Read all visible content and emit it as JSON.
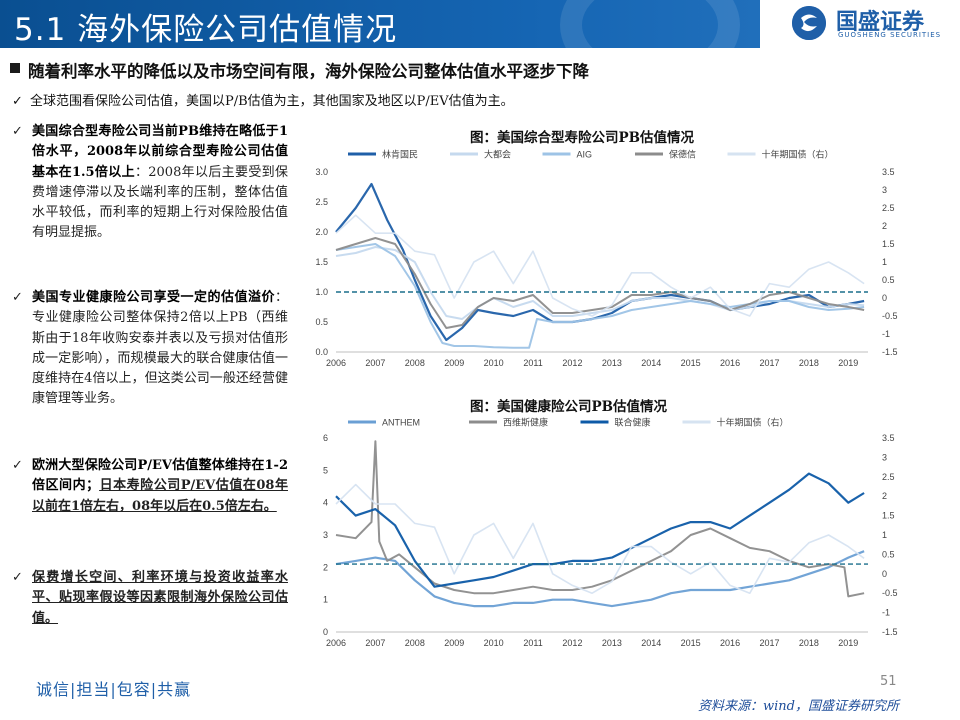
{
  "header": {
    "title": "5.1 海外保险公司估值情况",
    "logo_name": "国盛证券",
    "logo_sub": "GUOSHENG SECURITIES"
  },
  "headline": "随着利率水平的降低以及市场空间有限，海外保险公司整体估值水平逐步下降",
  "subline": "全球范围看保险公司估值，美国以P/B估值为主，其他国家及地区以P/EV估值为主。",
  "bullets": [
    {
      "bold": "美国综合型寿险公司当前PB维持在略低于1倍水平，2008年以前综合型寿险公司估值基本在1.5倍以上",
      "text": "：2008年以后主要受到保费增速停滞以及长端利率的压制，整体估值水平较低，而利率的短期上行对保险股估值有明显提振。"
    },
    {
      "bold": "美国专业健康险公司享受一定的估值溢价",
      "text": "：专业健康险公司整体保持2倍以上PB（西维斯由于18年收购安泰并表以及亏损对估值形成一定影响），而规模最大的联合健康估值一度维持在4倍以上，但这类公司一般还经营健康管理等业务。"
    },
    {
      "bold": "欧洲大型保险公司P/EV估值整体维持在1-2倍区间内；",
      "underline": "日本寿险公司P/EV估值在08年以前在1倍左右，08年以后在0.5倍左右。",
      "text": ""
    },
    {
      "underline": "保费增长空间、利率环境与投资收益率水平、贴现率假设等因素限制海外保险公司估值。",
      "text": ""
    }
  ],
  "footer": {
    "slogan": "诚信|担当|包容|共赢",
    "page": "51",
    "source": "资料来源：wind，国盛证券研究所"
  },
  "colors": {
    "brand_blue": "#1565b3",
    "dark_blue": "#1f5fa8",
    "gray_series": "#8c8c8c",
    "light_blue": "#9dc3e6",
    "pale_blue": "#c5d9ee",
    "mid_blue": "#6a9fd4",
    "dashed_ref": "#1a6e8c"
  },
  "icons": [
    "check-icon",
    "square-bullet-icon",
    "logo-icon"
  ],
  "chart_data": [
    {
      "type": "line",
      "title": "图：美国综合型寿险公司PB估值情况",
      "x_ticks": [
        "2006",
        "2007",
        "2008",
        "2009",
        "2010",
        "2011",
        "2012",
        "2013",
        "2014",
        "2015",
        "2016",
        "2017",
        "2018",
        "2019"
      ],
      "ylim_left": [
        0,
        3.0
      ],
      "y_ticks_left": [
        "3.0",
        "2.5",
        "2.0",
        "1.5",
        "1.0",
        "0.5",
        "0.0"
      ],
      "ylim_right": [
        -1.5,
        3.5
      ],
      "y_ticks_right": [
        "3.5",
        "3",
        "2.5",
        "2",
        "1.5",
        "1",
        "0.5",
        "0",
        "-0.5",
        "-1",
        "-1.5"
      ],
      "reference_line": 1.0,
      "legend_position": "top",
      "series": [
        {
          "name": "林肯国民",
          "axis": "left",
          "x": [
            2006,
            2006.5,
            2006.9,
            2007.3,
            2007.7,
            2008.0,
            2008.4,
            2008.8,
            2009.2,
            2009.6,
            2010.0,
            2010.5,
            2011.0,
            2011.5,
            2012.0,
            2012.5,
            2013.0,
            2013.5,
            2014.0,
            2014.5,
            2015.0,
            2015.5,
            2016.0,
            2016.5,
            2017.0,
            2017.5,
            2018.0,
            2018.5,
            2019.0,
            2019.4
          ],
          "y": [
            2.0,
            2.4,
            2.8,
            2.2,
            1.7,
            1.2,
            0.6,
            0.2,
            0.4,
            0.7,
            0.65,
            0.6,
            0.7,
            0.5,
            0.5,
            0.55,
            0.65,
            0.85,
            0.9,
            0.95,
            0.9,
            0.85,
            0.7,
            0.75,
            0.8,
            0.9,
            0.95,
            0.75,
            0.8,
            0.85
          ]
        },
        {
          "name": "大都会",
          "axis": "left",
          "x": [
            2006,
            2006.5,
            2007.0,
            2007.5,
            2008.0,
            2008.4,
            2008.8,
            2009.2,
            2009.6,
            2010.0,
            2010.5,
            2011.0,
            2011.5,
            2012.0,
            2012.5,
            2013.0,
            2013.5,
            2014.0,
            2014.5,
            2015.0,
            2015.5,
            2016.0,
            2016.5,
            2017.0,
            2017.5,
            2018.0,
            2018.5,
            2019.0,
            2019.4
          ],
          "y": [
            1.6,
            1.65,
            1.75,
            1.7,
            1.5,
            1.0,
            0.6,
            0.55,
            0.75,
            0.9,
            0.75,
            0.85,
            0.6,
            0.6,
            0.65,
            0.7,
            0.85,
            0.9,
            0.9,
            0.85,
            0.8,
            0.7,
            0.75,
            0.85,
            0.85,
            0.8,
            0.75,
            0.8,
            0.78
          ]
        },
        {
          "name": "AIG",
          "axis": "left",
          "x": [
            2006,
            2006.5,
            2007.0,
            2007.5,
            2008.0,
            2008.4,
            2008.7,
            2009.0,
            2009.5,
            2010.0,
            2010.5,
            2010.9,
            2011.1,
            2011.5,
            2012.0,
            2012.5,
            2013.0,
            2013.5,
            2014.0,
            2014.5,
            2015.0,
            2015.5,
            2016.0,
            2016.5,
            2017.0,
            2017.5,
            2018.0,
            2018.5,
            2019.0,
            2019.4
          ],
          "y": [
            1.7,
            1.75,
            1.8,
            1.6,
            1.1,
            0.5,
            0.15,
            0.1,
            0.1,
            0.08,
            0.07,
            0.07,
            0.55,
            0.5,
            0.5,
            0.55,
            0.6,
            0.7,
            0.75,
            0.8,
            0.85,
            0.8,
            0.75,
            0.8,
            0.85,
            0.85,
            0.75,
            0.7,
            0.72,
            0.75
          ]
        },
        {
          "name": "保德信",
          "axis": "left",
          "x": [
            2006,
            2006.5,
            2007.0,
            2007.5,
            2008.0,
            2008.4,
            2008.8,
            2009.2,
            2009.6,
            2010.0,
            2010.5,
            2011.0,
            2011.5,
            2012.0,
            2012.5,
            2013.0,
            2013.5,
            2014.0,
            2014.5,
            2015.0,
            2015.5,
            2016.0,
            2016.5,
            2017.0,
            2017.5,
            2018.0,
            2018.5,
            2019.0,
            2019.4
          ],
          "y": [
            1.7,
            1.8,
            1.9,
            1.8,
            1.3,
            0.8,
            0.4,
            0.45,
            0.75,
            0.9,
            0.85,
            0.95,
            0.65,
            0.65,
            0.7,
            0.75,
            0.95,
            0.95,
            1.0,
            0.9,
            0.85,
            0.7,
            0.8,
            0.95,
            1.0,
            0.9,
            0.8,
            0.75,
            0.7
          ]
        },
        {
          "name": "十年期国债（右）",
          "axis": "right",
          "x": [
            2006,
            2006.5,
            2007.0,
            2007.5,
            2008.0,
            2008.5,
            2009.0,
            2009.5,
            2010.0,
            2010.5,
            2011.0,
            2011.5,
            2012.0,
            2012.5,
            2013.0,
            2013.5,
            2014.0,
            2014.5,
            2015.0,
            2015.5,
            2016.0,
            2016.5,
            2017.0,
            2017.5,
            2018.0,
            2018.5,
            2019.0,
            2019.4
          ],
          "y": [
            1.8,
            2.3,
            1.8,
            1.8,
            1.3,
            1.2,
            0.0,
            1.0,
            1.3,
            0.4,
            1.3,
            0.0,
            -0.3,
            -0.5,
            -0.2,
            0.7,
            0.7,
            0.3,
            0.0,
            0.3,
            -0.3,
            -0.5,
            0.4,
            0.3,
            0.8,
            1.0,
            0.7,
            0.4
          ]
        }
      ]
    },
    {
      "type": "line",
      "title": "图：美国健康险公司PB估值情况",
      "x_ticks": [
        "2006",
        "2007",
        "2008",
        "2009",
        "2010",
        "2011",
        "2012",
        "2013",
        "2014",
        "2015",
        "2016",
        "2017",
        "2018",
        "2019"
      ],
      "ylim_left": [
        0,
        6
      ],
      "y_ticks_left": [
        "6",
        "5",
        "4",
        "3",
        "2",
        "1",
        "0"
      ],
      "ylim_right": [
        -1.5,
        3.5
      ],
      "y_ticks_right": [
        "3.5",
        "3",
        "2.5",
        "2",
        "1.5",
        "1",
        "0.5",
        "0",
        "-0.5",
        "-1",
        "-1.5"
      ],
      "reference_line": 2.1,
      "legend_position": "top",
      "series": [
        {
          "name": "ANTHEM",
          "axis": "left",
          "x": [
            2006,
            2006.5,
            2007.0,
            2007.5,
            2008.0,
            2008.5,
            2009.0,
            2009.5,
            2010.0,
            2010.5,
            2011.0,
            2011.5,
            2012.0,
            2012.5,
            2013.0,
            2013.5,
            2014.0,
            2014.5,
            2015.0,
            2015.5,
            2016.0,
            2016.5,
            2017.0,
            2017.5,
            2018.0,
            2018.5,
            2019.0,
            2019.4
          ],
          "y": [
            2.1,
            2.2,
            2.3,
            2.2,
            1.6,
            1.1,
            0.9,
            0.8,
            0.8,
            0.9,
            0.9,
            1.0,
            1.0,
            0.9,
            0.8,
            0.9,
            1.0,
            1.2,
            1.3,
            1.3,
            1.3,
            1.4,
            1.5,
            1.6,
            1.8,
            2.0,
            2.3,
            2.5
          ]
        },
        {
          "name": "西维斯健康",
          "axis": "left",
          "x": [
            2006,
            2006.5,
            2006.9,
            2007.0,
            2007.1,
            2007.3,
            2007.6,
            2008.0,
            2008.5,
            2009.0,
            2009.5,
            2010.0,
            2010.5,
            2011.0,
            2011.5,
            2012.0,
            2012.5,
            2013.0,
            2013.5,
            2014.0,
            2014.5,
            2015.0,
            2015.5,
            2016.0,
            2016.5,
            2017.0,
            2017.5,
            2018.0,
            2018.5,
            2018.9,
            2019.0,
            2019.4
          ],
          "y": [
            3.0,
            2.9,
            3.4,
            5.9,
            2.8,
            2.2,
            2.4,
            2.0,
            1.5,
            1.3,
            1.2,
            1.2,
            1.3,
            1.4,
            1.3,
            1.3,
            1.4,
            1.6,
            1.9,
            2.2,
            2.5,
            3.0,
            3.2,
            2.9,
            2.6,
            2.5,
            2.2,
            2.0,
            2.1,
            2.0,
            1.1,
            1.2
          ]
        },
        {
          "name": "联合健康",
          "axis": "left",
          "x": [
            2006,
            2006.5,
            2007.0,
            2007.5,
            2008.0,
            2008.5,
            2009.0,
            2009.5,
            2010.0,
            2010.5,
            2011.0,
            2011.5,
            2012.0,
            2012.5,
            2013.0,
            2013.5,
            2014.0,
            2014.5,
            2015.0,
            2015.5,
            2016.0,
            2016.5,
            2017.0,
            2017.5,
            2018.0,
            2018.5,
            2019.0,
            2019.4
          ],
          "y": [
            4.2,
            3.6,
            3.8,
            3.3,
            2.2,
            1.4,
            1.5,
            1.6,
            1.7,
            1.9,
            2.1,
            2.1,
            2.2,
            2.2,
            2.3,
            2.6,
            2.9,
            3.2,
            3.4,
            3.4,
            3.2,
            3.6,
            4.0,
            4.4,
            4.9,
            4.6,
            4.0,
            4.3
          ]
        },
        {
          "name": "十年期国债（右）",
          "axis": "right",
          "x": [
            2006,
            2006.5,
            2007.0,
            2007.5,
            2008.0,
            2008.5,
            2009.0,
            2009.5,
            2010.0,
            2010.5,
            2011.0,
            2011.5,
            2012.0,
            2012.5,
            2013.0,
            2013.5,
            2014.0,
            2014.5,
            2015.0,
            2015.5,
            2016.0,
            2016.5,
            2017.0,
            2017.5,
            2018.0,
            2018.5,
            2019.0,
            2019.4
          ],
          "y": [
            1.8,
            2.3,
            1.8,
            1.8,
            1.3,
            1.2,
            0.0,
            1.0,
            1.3,
            0.4,
            1.3,
            0.0,
            -0.3,
            -0.5,
            -0.2,
            0.7,
            0.7,
            0.3,
            0.0,
            0.3,
            -0.3,
            -0.5,
            0.4,
            0.3,
            0.8,
            1.0,
            0.7,
            0.4
          ]
        }
      ]
    }
  ]
}
